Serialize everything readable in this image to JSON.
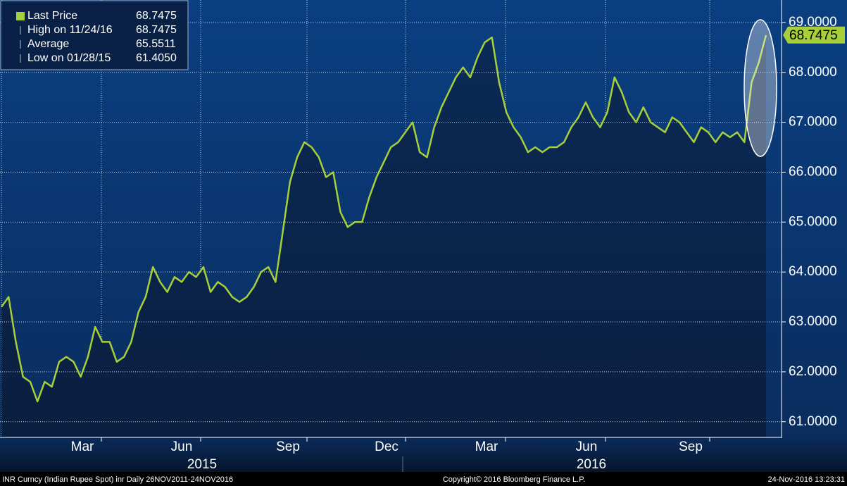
{
  "chart_data": {
    "type": "line",
    "series": [
      {
        "name": "Last Price",
        "color": "#a6cf3a",
        "values": [
          63.3,
          63.5,
          62.6,
          61.9,
          61.8,
          61.405,
          61.8,
          61.7,
          62.2,
          62.3,
          62.2,
          61.9,
          62.3,
          62.9,
          62.6,
          62.6,
          62.2,
          62.3,
          62.6,
          63.2,
          63.5,
          64.1,
          63.8,
          63.6,
          63.9,
          63.8,
          64.0,
          63.9,
          64.1,
          63.6,
          63.8,
          63.7,
          63.5,
          63.4,
          63.5,
          63.7,
          64.0,
          64.1,
          63.8,
          64.8,
          65.8,
          66.3,
          66.6,
          66.5,
          66.3,
          65.9,
          66.0,
          65.2,
          64.9,
          65.0,
          65.0,
          65.5,
          65.9,
          66.2,
          66.5,
          66.6,
          66.8,
          67.0,
          66.4,
          66.3,
          66.9,
          67.3,
          67.6,
          67.9,
          68.1,
          67.9,
          68.3,
          68.6,
          68.7,
          67.8,
          67.2,
          66.9,
          66.7,
          66.4,
          66.5,
          66.4,
          66.5,
          66.5,
          66.6,
          66.9,
          67.1,
          67.4,
          67.1,
          66.9,
          67.2,
          67.9,
          67.6,
          67.2,
          67.0,
          67.3,
          67.0,
          66.9,
          66.8,
          67.1,
          67.0,
          66.8,
          66.6,
          66.9,
          66.8,
          66.6,
          66.8,
          66.7,
          66.8,
          66.6,
          67.8,
          68.2,
          68.7475
        ]
      }
    ],
    "ylim": [
      60.7,
      69.45
    ],
    "yticks": [
      {
        "value": 61,
        "label": "61.0000"
      },
      {
        "value": 62,
        "label": "62.0000"
      },
      {
        "value": 63,
        "label": "63.0000"
      },
      {
        "value": 64,
        "label": "64.0000"
      },
      {
        "value": 65,
        "label": "65.0000"
      },
      {
        "value": 66,
        "label": "66.0000"
      },
      {
        "value": 67,
        "label": "67.0000"
      },
      {
        "value": 68,
        "label": "68.0000"
      },
      {
        "value": 69,
        "label": "69.0000"
      }
    ],
    "grid": true,
    "month_labels": [
      "Mar",
      "Jun",
      "Sep",
      "Dec",
      "Mar",
      "Jun",
      "Sep"
    ],
    "year_labels": [
      "2015",
      "2016"
    ],
    "last_price_label": "68.7475",
    "legend": [
      {
        "label": "Last Price",
        "value_label": "68.7475"
      },
      {
        "label": "High on 11/24/16",
        "value_label": "68.7475"
      },
      {
        "label": "Average",
        "value_label": "65.5511"
      },
      {
        "label": "Low on 01/28/15",
        "value_label": "61.4050"
      }
    ],
    "footer": {
      "left": "INR Curncy (Indian Rupee Spot) inr  Daily 26NOV2011-24NOV2016",
      "center": "Copyright© 2016 Bloomberg Finance L.P.",
      "right": "24-Nov-2016 13:23:31"
    }
  }
}
